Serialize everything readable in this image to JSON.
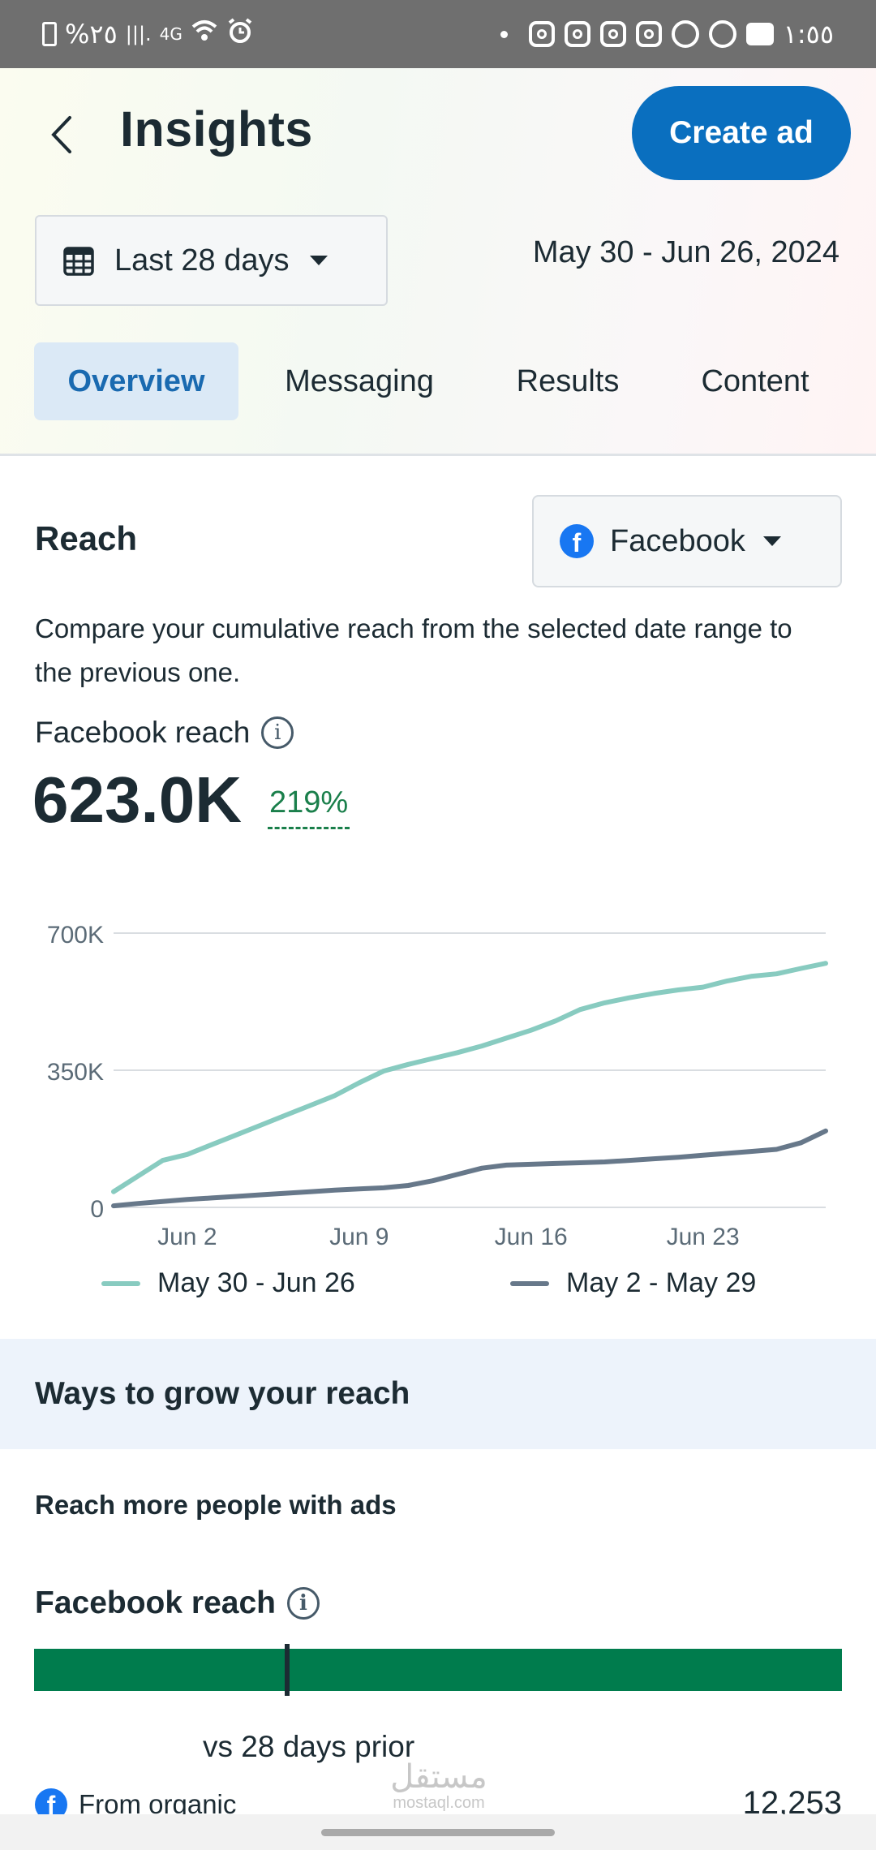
{
  "status_bar": {
    "battery_percent": "%٢٥",
    "signal": "|||.",
    "network": "4G",
    "time": "١:٥٥"
  },
  "header": {
    "title": "Insights",
    "back_icon": "chevron-left-icon",
    "create_ad_label": "Create ad"
  },
  "date_filter": {
    "label": "Last 28 days",
    "icon": "calendar-icon",
    "range": "May 30 - Jun 26, 2024"
  },
  "tabs": [
    {
      "label": "Overview",
      "active": true
    },
    {
      "label": "Messaging",
      "active": false
    },
    {
      "label": "Results",
      "active": false
    },
    {
      "label": "Content",
      "active": false
    }
  ],
  "reach": {
    "title": "Reach",
    "platform": "Facebook",
    "description": "Compare your cumulative reach from the selected date range to the previous one.",
    "metric_label": "Facebook reach",
    "metric_value": "623.0K",
    "metric_change": "219%"
  },
  "chart_data": {
    "type": "line",
    "y_ticks": [
      "700K",
      "350K",
      "0"
    ],
    "x_ticks": [
      "Jun 2",
      "Jun 9",
      "Jun 16",
      "Jun 23"
    ],
    "ylim": [
      0,
      700000
    ],
    "grid": true,
    "legend_position": "bottom",
    "series": [
      {
        "name": "May 30 - Jun 26",
        "color": "#88cbc0",
        "values": [
          40000,
          80000,
          120000,
          135000,
          160000,
          185000,
          210000,
          235000,
          260000,
          285000,
          318000,
          348000,
          365000,
          380000,
          395000,
          412000,
          432000,
          452000,
          476000,
          505000,
          522000,
          535000,
          546000,
          555000,
          562000,
          578000,
          590000,
          596000,
          610000,
          623000
        ]
      },
      {
        "name": "May 2 - May 29",
        "color": "#67788a",
        "values": [
          4000,
          10000,
          15000,
          20000,
          24000,
          28000,
          32000,
          36000,
          40000,
          44000,
          47000,
          50000,
          56000,
          68000,
          84000,
          100000,
          108000,
          110000,
          112000,
          114000,
          116000,
          120000,
          124000,
          128000,
          133000,
          138000,
          143000,
          148000,
          165000,
          195000
        ]
      }
    ]
  },
  "grow": {
    "title": "Ways to grow your reach",
    "ads_title": "Reach more people with ads",
    "reach_label": "Facebook reach",
    "reach_bar_color": "#007c4d",
    "marker_fraction": 0.31,
    "vs_label": "vs 28 days prior",
    "organic_label": "From organic",
    "organic_value": "12,253"
  },
  "watermark": {
    "line1": "مستقل",
    "line2": "mostaql.com"
  }
}
